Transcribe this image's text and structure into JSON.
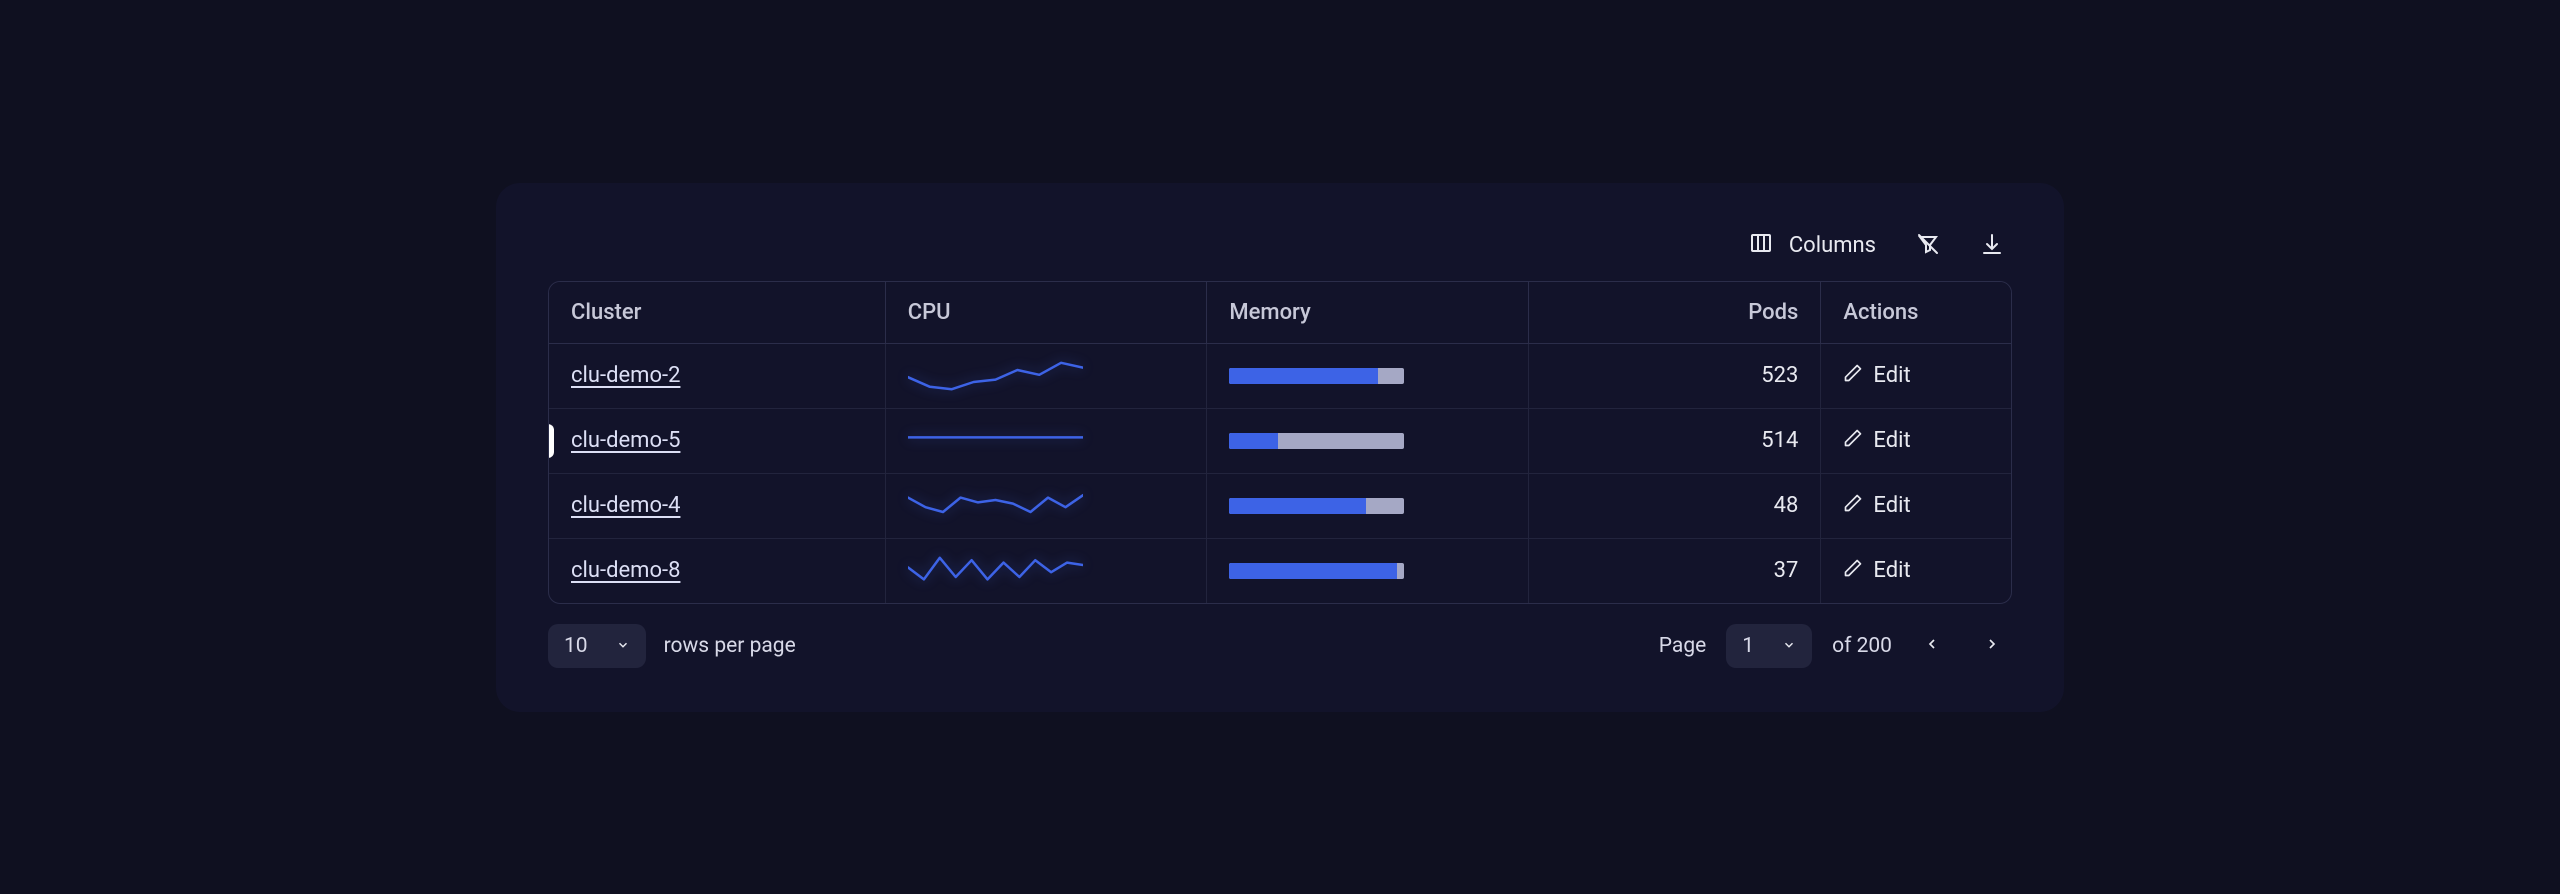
{
  "colors": {
    "panel_bg": "#12132a",
    "border": "#2b2d4a",
    "row_border": "#22243d",
    "text": "#e8e9f0",
    "header_text": "#c7c8d8",
    "link_text": "#dcdff5",
    "sparkline": "#3d63e6",
    "membar_fill": "#3d63e6",
    "membar_track": "#a5a8c5",
    "select_bg": "#22243d",
    "marker": "#ffffff"
  },
  "toolbar": {
    "columns_label": "Columns"
  },
  "table": {
    "headers": {
      "cluster": "Cluster",
      "cpu": "CPU",
      "memory": "Memory",
      "pods": "Pods",
      "actions": "Actions"
    },
    "edit_label": "Edit",
    "rows": [
      {
        "cluster": "clu-demo-2",
        "pods": "523",
        "memory_pct": 85,
        "marked": false,
        "spark": [
          14,
          6,
          4,
          10,
          12,
          20,
          16,
          26,
          22
        ]
      },
      {
        "cluster": "clu-demo-5",
        "pods": "514",
        "memory_pct": 28,
        "marked": true,
        "spark": [
          18,
          18,
          18,
          18,
          18,
          18,
          18,
          18,
          18
        ]
      },
      {
        "cluster": "clu-demo-4",
        "pods": "48",
        "memory_pct": 78,
        "marked": false,
        "spark": [
          22,
          14,
          10,
          22,
          18,
          20,
          17,
          10,
          22,
          14,
          24
        ]
      },
      {
        "cluster": "clu-demo-8",
        "pods": "37",
        "memory_pct": 96,
        "marked": false,
        "spark": [
          18,
          8,
          26,
          10,
          24,
          8,
          22,
          10,
          24,
          14,
          22,
          20
        ]
      }
    ]
  },
  "pagination": {
    "rows_per_page_value": "10",
    "rows_per_page_label": "rows per page",
    "page_label": "Page",
    "current_page": "1",
    "of_label": "of 200"
  }
}
